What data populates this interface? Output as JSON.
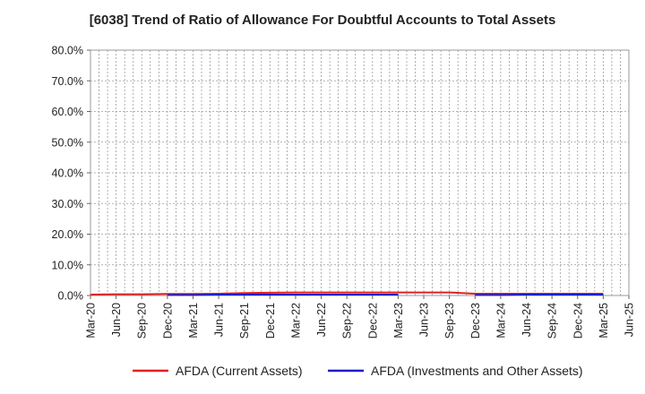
{
  "chart_data": {
    "type": "line",
    "title": "[6038]  Trend of Ratio of Allowance For Doubtful Accounts to Total Assets",
    "xlabel": "",
    "ylabel": "",
    "x_tick_labels": [
      "Mar-20",
      "Jun-20",
      "Sep-20",
      "Dec-20",
      "Mar-21",
      "Jun-21",
      "Sep-21",
      "Dec-21",
      "Mar-22",
      "Jun-22",
      "Sep-22",
      "Dec-22",
      "Mar-23",
      "Jun-23",
      "Sep-23",
      "Dec-23",
      "Mar-24",
      "Jun-24",
      "Sep-24",
      "Dec-24",
      "Mar-25",
      "Jun-25"
    ],
    "y_tick_labels": [
      "0.0%",
      "10.0%",
      "20.0%",
      "30.0%",
      "40.0%",
      "50.0%",
      "60.0%",
      "70.0%",
      "80.0%"
    ],
    "ylim": [
      0,
      80
    ],
    "y_unit": "%",
    "grid": true,
    "legend_position": "bottom",
    "series": [
      {
        "name": "AFDA (Current Assets)",
        "color": "#e02020",
        "x": [
          "Mar-20",
          "Jun-20",
          "Sep-20",
          "Dec-20",
          "Mar-21",
          "Jun-21",
          "Sep-21",
          "Dec-21",
          "Mar-22",
          "Jun-22",
          "Sep-22",
          "Dec-22",
          "Mar-23",
          "Jun-23",
          "Sep-23",
          "Dec-23",
          "Mar-24",
          "Jun-24",
          "Sep-24",
          "Dec-24",
          "Mar-25"
        ],
        "values": [
          0.3,
          0.4,
          0.4,
          0.5,
          0.5,
          0.6,
          0.8,
          0.9,
          1.0,
          1.0,
          1.0,
          1.0,
          1.0,
          1.0,
          1.0,
          0.6,
          0.6,
          0.6,
          0.6,
          0.6,
          0.6
        ]
      },
      {
        "name": "AFDA (Investments and Other Assets)",
        "color": "#1c1cc8",
        "x": [
          "Dec-20",
          "Mar-21",
          "Jun-21",
          "Sep-21",
          "Dec-21",
          "Mar-22",
          "Jun-22",
          "Sep-22",
          "Dec-22",
          "Mar-23",
          "",
          "",
          "",
          "Dec-23",
          "Mar-24",
          "Jun-24",
          "Sep-24",
          "Dec-24",
          "Mar-25"
        ],
        "values": [
          0.2,
          0.2,
          0.3,
          0.3,
          0.3,
          0.3,
          0.3,
          0.3,
          0.3,
          0.3,
          null,
          null,
          null,
          0.2,
          0.2,
          0.3,
          0.3,
          0.3,
          0.3
        ]
      }
    ]
  }
}
